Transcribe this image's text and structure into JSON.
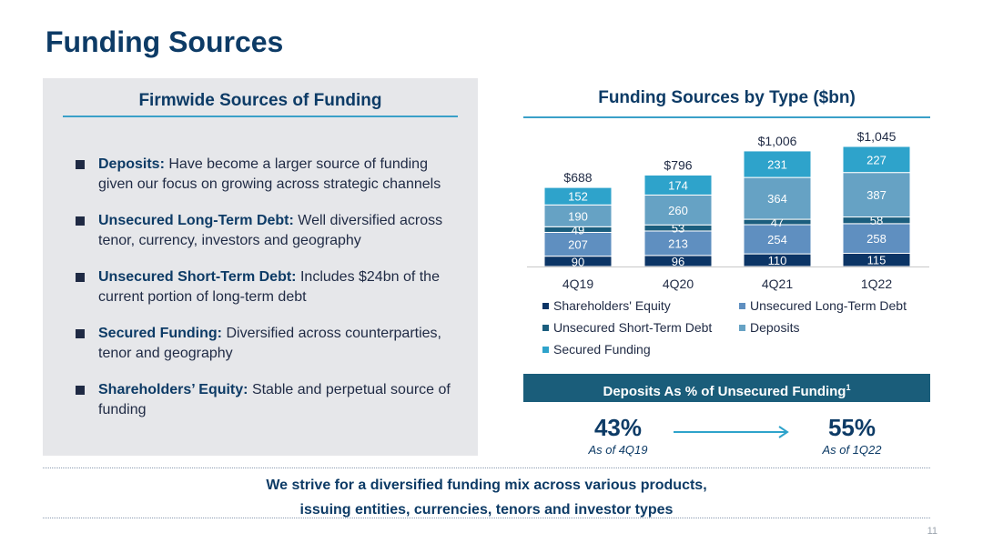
{
  "title": "Funding Sources",
  "left": {
    "heading": "Firmwide Sources of Funding",
    "bullets": [
      {
        "label": "Deposits:",
        "text": "Have become a larger source of funding given our focus on growing across strategic channels"
      },
      {
        "label": "Unsecured Long-Term Debt:",
        "text": "Well diversified across tenor, currency, investors and geography"
      },
      {
        "label": "Unsecured Short-Term Debt:",
        "text": "Includes $24bn of the current portion of long-term debt"
      },
      {
        "label": "Secured Funding:",
        "text": "Diversified across counterparties, tenor and geography"
      },
      {
        "label": "Shareholders’ Equity:",
        "text": "Stable and perpetual source of funding"
      }
    ]
  },
  "chart_data": {
    "type": "bar",
    "stacked": true,
    "title": "Funding Sources by Type ($bn)",
    "categories": [
      "4Q19",
      "4Q20",
      "4Q21",
      "1Q22"
    ],
    "totals": [
      "$688",
      "$796",
      "$1,006",
      "$1,045"
    ],
    "series": [
      {
        "name": "Shareholders' Equity",
        "color": "#0c3566",
        "values": [
          90,
          96,
          110,
          115
        ]
      },
      {
        "name": "Unsecured Long-Term Debt",
        "color": "#5f8fc0",
        "values": [
          207,
          213,
          254,
          258
        ]
      },
      {
        "name": "Unsecured Short-Term Debt",
        "color": "#1b5e7e",
        "values": [
          49,
          53,
          47,
          58
        ]
      },
      {
        "name": "Deposits",
        "color": "#66a2c4",
        "values": [
          190,
          260,
          364,
          387
        ]
      },
      {
        "name": "Secured Funding",
        "color": "#2ea3cb",
        "values": [
          152,
          174,
          231,
          227
        ]
      }
    ],
    "legend_position": "bottom",
    "ylim": [
      0,
      1045
    ]
  },
  "deposits_pct": {
    "heading": "Deposits As % of Unsecured Funding",
    "footnote": "1",
    "start": {
      "value": "43%",
      "label": "As of 4Q19"
    },
    "end": {
      "value": "55%",
      "label": "As of 1Q22"
    }
  },
  "footer": {
    "line1": "We strive for a diversified funding mix across various products,",
    "line2": "issuing entities, currencies, tenors and investor types"
  },
  "page_number": "11"
}
